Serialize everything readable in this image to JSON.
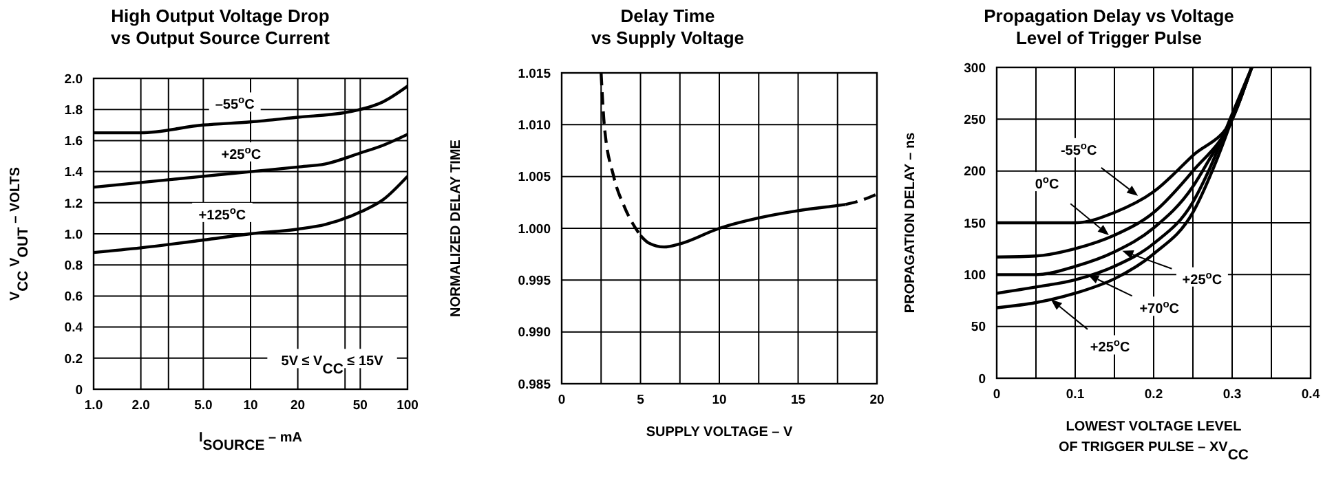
{
  "chart_data": [
    {
      "type": "line",
      "title": "High Output Voltage Drop\nvs Output Source Current",
      "xlabel": "I$_{SOURCE}$ – mA",
      "ylabel": "V$_{CC}$ V$_{OUT}$ – VOLTS",
      "log": "x",
      "grid": true,
      "xlim": [
        1,
        100
      ],
      "xticks": [
        {
          "value": 1,
          "label": "1.0"
        },
        {
          "value": 2,
          "label": "2.0"
        },
        {
          "value": 3,
          "label": null
        },
        {
          "value": 5,
          "label": "5.0"
        },
        10,
        20,
        {
          "value": 40,
          "label": null
        },
        50,
        100
      ],
      "ylim": [
        0,
        2
      ],
      "yticks": [
        0,
        0.2,
        0.4,
        0.6,
        0.8,
        {
          "value": 1,
          "label": "1.0"
        },
        1.2,
        1.4,
        1.6,
        1.8,
        {
          "value": 2,
          "label": "2.0"
        }
      ],
      "series": [
        {
          "color": "#000000",
          "x": [
            1,
            2,
            5,
            10,
            20,
            40,
            50,
            70,
            100
          ],
          "values": [
            1.65,
            1.65,
            1.7,
            1.72,
            1.75,
            1.78,
            1.8,
            1.85,
            1.95
          ]
        },
        {
          "color": "#000000",
          "x": [
            1,
            2,
            5,
            10,
            20,
            30,
            50,
            70,
            100
          ],
          "values": [
            1.3,
            1.33,
            1.37,
            1.4,
            1.43,
            1.45,
            1.52,
            1.57,
            1.64
          ]
        },
        {
          "color": "#000000",
          "x": [
            1,
            2,
            5,
            10,
            20,
            30,
            50,
            70,
            100
          ],
          "values": [
            0.88,
            0.91,
            0.96,
            1.0,
            1.03,
            1.06,
            1.14,
            1.22,
            1.37
          ]
        }
      ],
      "annotations": [
        "–55$^{o}$C",
        "+25$^{o}$C",
        "+125$^{o}$C",
        "5V ≤ V$_{CC}$ ≤ 15V"
      ]
    },
    {
      "type": "line",
      "title": "Delay Time\nvs Supply Voltage",
      "xlabel": "SUPPLY VOLTAGE – V",
      "ylabel": "NORMALIZED DELAY TIME",
      "grid": true,
      "xlim": [
        0,
        20
      ],
      "xticks": [
        0,
        {
          "value": 2.5,
          "label": null
        },
        5,
        {
          "value": 7.5,
          "label": null
        },
        10,
        {
          "value": 12.5,
          "label": null
        },
        15,
        {
          "value": 17.5,
          "label": null
        },
        20
      ],
      "ylim": [
        0.985,
        1.015
      ],
      "yticks": [
        0.985,
        {
          "value": 0.99,
          "label": "0.990"
        },
        0.995,
        {
          "value": 1,
          "label": "1.000"
        },
        1.005,
        {
          "value": 1.01,
          "label": "1.010"
        },
        1.015
      ],
      "series": [
        {
          "color": "#000000",
          "line_style": "dashed",
          "x": [
            2.5,
            2.7,
            3.3,
            4,
            5
          ],
          "values": [
            1.015,
            1.01,
            1.005,
            1.002,
            0.9993
          ]
        },
        {
          "color": "#000000",
          "line_style": "solid",
          "x": [
            5,
            5.5,
            6.5,
            7.5,
            10,
            12.5,
            15,
            17.5,
            18
          ],
          "values": [
            0.9993,
            0.9986,
            0.9982,
            0.9985,
            1.0,
            1.001,
            1.0017,
            1.0022,
            1.0023
          ]
        },
        {
          "color": "#000000",
          "line_style": "dashed",
          "x": [
            18,
            19,
            20
          ],
          "values": [
            1.0023,
            1.0027,
            1.0033
          ]
        }
      ]
    },
    {
      "type": "line",
      "title": "Propagation Delay vs Voltage\nLevel of Trigger Pulse",
      "xlabel": "LOWEST VOLTAGE LEVEL\nOF TRIGGER PULSE – XV$_{CC}$",
      "ylabel": "PROPAGATION DELAY – ns",
      "grid": true,
      "xlim": [
        0,
        0.4
      ],
      "xticks": [
        0,
        {
          "value": 0.05,
          "label": null
        },
        0.1,
        {
          "value": 0.15,
          "label": null
        },
        0.2,
        {
          "value": 0.25,
          "label": null
        },
        0.3,
        {
          "value": 0.35,
          "label": null
        },
        0.4
      ],
      "ylim": [
        0,
        300
      ],
      "yticks": [
        0,
        50,
        100,
        150,
        200,
        250,
        300
      ],
      "series": [
        {
          "color": "#000000",
          "x": [
            0,
            0.05,
            0.1,
            0.15,
            0.2,
            0.25,
            0.3,
            0.32
          ],
          "values": [
            150,
            150,
            150,
            160,
            180,
            215,
            250,
            290
          ]
        },
        {
          "color": "#000000",
          "x": [
            0,
            0.05,
            0.1,
            0.15,
            0.2,
            0.25,
            0.3,
            0.325
          ],
          "values": [
            117,
            118,
            125,
            138,
            160,
            200,
            250,
            300
          ]
        },
        {
          "color": "#000000",
          "x": [
            0,
            0.05,
            0.1,
            0.15,
            0.2,
            0.25,
            0.27,
            0.3,
            0.325
          ],
          "values": [
            100,
            100,
            108,
            122,
            145,
            185,
            210,
            250,
            300
          ]
        },
        {
          "color": "#000000",
          "x": [
            0,
            0.05,
            0.1,
            0.15,
            0.2,
            0.25,
            0.27,
            0.3,
            0.325
          ],
          "values": [
            82,
            88,
            95,
            108,
            130,
            170,
            200,
            255,
            300
          ]
        },
        {
          "color": "#000000",
          "x": [
            0,
            0.05,
            0.1,
            0.15,
            0.2,
            0.25,
            0.28,
            0.3,
            0.325
          ],
          "values": [
            68,
            73,
            82,
            96,
            120,
            160,
            210,
            250,
            300
          ]
        }
      ],
      "annotations": [
        {
          "text": "-55$^{o}$C",
          "x": 0.18,
          "y": 176
        },
        {
          "text": "0$^{o}$C",
          "x": 0.143,
          "y": 138
        },
        {
          "text": "+25$^{o}$C",
          "x": 0.16,
          "y": 123
        },
        {
          "text": "+70$^{o}$C",
          "x": 0.116,
          "y": 100
        },
        {
          "text": "+25$^{o}$C",
          "x": 0.069,
          "y": 76
        }
      ]
    }
  ]
}
